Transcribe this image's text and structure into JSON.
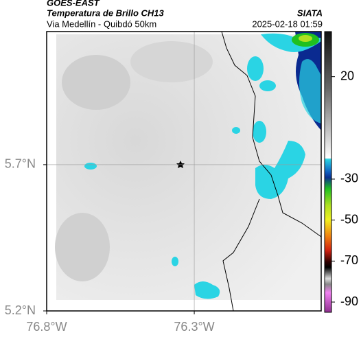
{
  "header": {
    "source": "GOES-EAST",
    "title": "Temperatura de Brillo CH13",
    "subtitle": "Via Medellín - Quibdó 50km",
    "agency": "SIATA",
    "timestamp": "2025-02-18 01:59"
  },
  "map": {
    "xlim": [
      -76.8,
      -75.87
    ],
    "ylim": [
      5.2,
      6.155
    ],
    "xticks": [
      {
        "value": -76.8,
        "label": "76.8°W"
      },
      {
        "value": -76.3,
        "label": "76.3°W"
      }
    ],
    "yticks": [
      {
        "value": 5.7,
        "label": "5.7°N"
      },
      {
        "value": 5.2,
        "label": "5.2°N"
      }
    ]
  },
  "colorbar": {
    "lim": [
      42,
      -95
    ],
    "ticks": [
      20,
      -30,
      -50,
      -70,
      -90
    ]
  }
}
